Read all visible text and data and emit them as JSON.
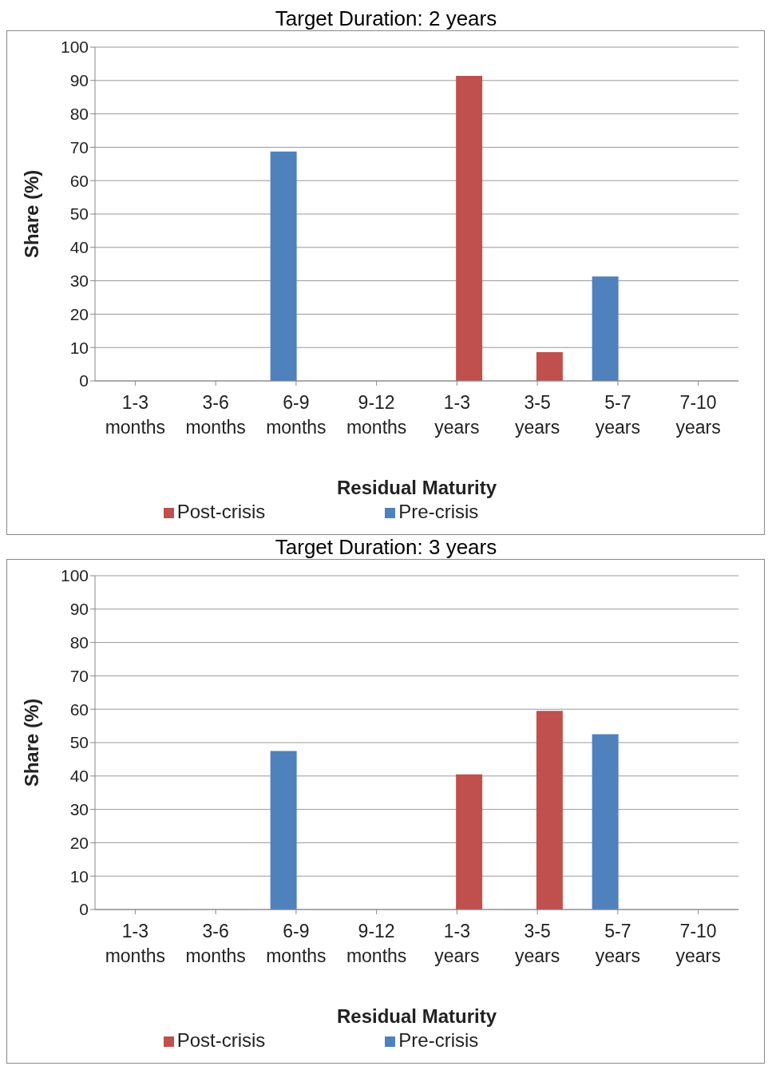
{
  "chart_data": [
    {
      "type": "bar",
      "title": "Target Duration: 2 years",
      "xlabel": "Residual Maturity",
      "ylabel": "Share (%)",
      "categories": [
        "1-3 months",
        "3-6 months",
        "6-9 months",
        "9-12 months",
        "1-3 years",
        "3-5 years",
        "5-7 years",
        "7-10 years"
      ],
      "series": [
        {
          "name": "Pre-crisis",
          "color": "#4f81bd",
          "values": [
            null,
            null,
            68.7,
            null,
            null,
            null,
            31.3,
            null
          ]
        },
        {
          "name": "Post-crisis",
          "color": "#c0504d",
          "values": [
            null,
            null,
            null,
            null,
            91.4,
            8.6,
            null,
            null
          ]
        }
      ],
      "ylim": [
        0,
        100
      ],
      "yticks": [
        0,
        10,
        20,
        30,
        40,
        50,
        60,
        70,
        80,
        90,
        100
      ],
      "grid": "y",
      "legend": "bottom"
    },
    {
      "type": "bar",
      "title": "Target Duration: 3 years",
      "xlabel": "Residual Maturity",
      "ylabel": "Share (%)",
      "categories": [
        "1-3 months",
        "3-6 months",
        "6-9 months",
        "9-12 months",
        "1-3 years",
        "3-5 years",
        "5-7 years",
        "7-10 years"
      ],
      "series": [
        {
          "name": "Pre-crisis",
          "color": "#4f81bd",
          "values": [
            null,
            null,
            47.5,
            null,
            null,
            null,
            52.5,
            null
          ]
        },
        {
          "name": "Post-crisis",
          "color": "#c0504d",
          "values": [
            null,
            null,
            null,
            null,
            40.5,
            59.5,
            null,
            null
          ]
        }
      ],
      "ylim": [
        0,
        100
      ],
      "yticks": [
        0,
        10,
        20,
        30,
        40,
        50,
        60,
        70,
        80,
        90,
        100
      ],
      "grid": "y",
      "legend": "bottom"
    }
  ]
}
